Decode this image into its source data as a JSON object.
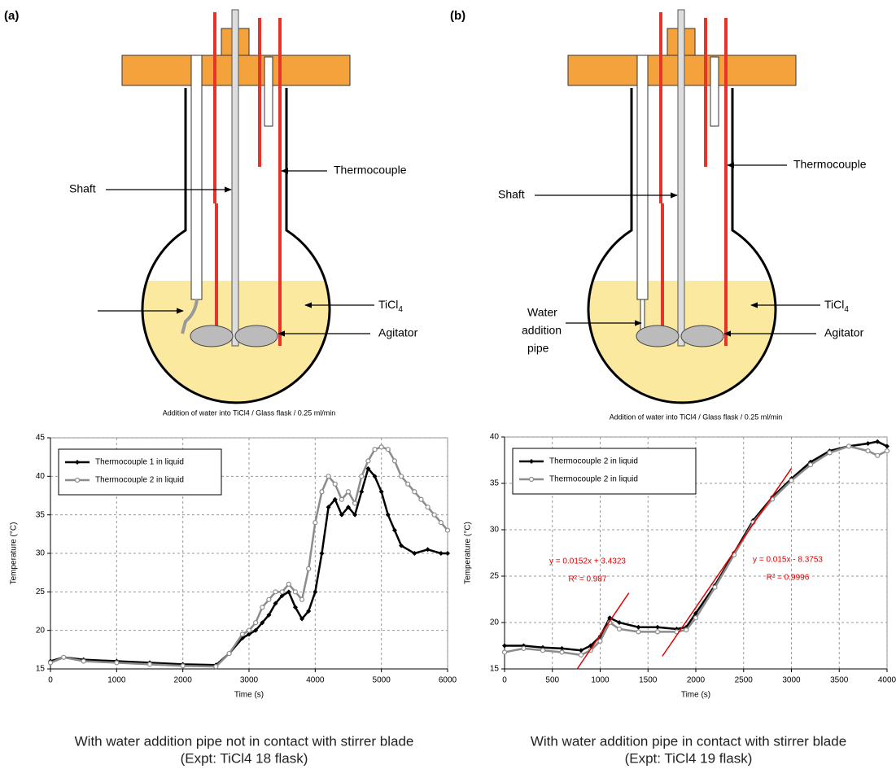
{
  "panels": [
    {
      "label": "(a)",
      "shaft": "Shaft",
      "thermocouple": "Thermocouple",
      "ticl": "TiCl",
      "ticl_sub": "4",
      "agitator": "Agitator",
      "caption": [
        "With water addition pipe not in contact with stirrer blade",
        "(Expt: TiCl4 18 flask)"
      ]
    },
    {
      "label": "(b)",
      "shaft": "Shaft",
      "thermocouple": "Thermocouple",
      "ticl": "TiCl",
      "ticl_sub": "4",
      "agitator": "Agitator",
      "water_pipe": [
        "Water",
        "addition",
        "pipe"
      ],
      "caption": [
        "With water addition pipe in contact with stirrer blade",
        "(Expt: TiCl4 19 flask)"
      ]
    }
  ],
  "chart_data": [
    {
      "type": "line",
      "title": "Addition of water into TiCl4 / Glass flask / 0.25 ml/min",
      "x_label": "Time (s)",
      "y_label": "Temperature (°C)",
      "xlim": [
        0,
        6000
      ],
      "xticks": [
        0,
        1000,
        2000,
        3000,
        4000,
        5000,
        6000
      ],
      "ylim": [
        15,
        45
      ],
      "yticks": [
        15,
        20,
        25,
        30,
        35,
        40,
        45
      ],
      "grid": true,
      "legend": "upper left",
      "series": [
        {
          "name": "Thermocouple 1 in liquid",
          "color": "#000000",
          "marker": "diamond",
          "x": [
            0,
            200,
            500,
            1000,
            1500,
            2000,
            2500,
            2700,
            2900,
            3000,
            3100,
            3200,
            3300,
            3400,
            3500,
            3600,
            3700,
            3800,
            3900,
            4000,
            4100,
            4200,
            4300,
            4400,
            4500,
            4600,
            4700,
            4800,
            4900,
            5000,
            5100,
            5200,
            5300,
            5500,
            5700,
            5900,
            6000
          ],
          "values": [
            16,
            16.5,
            16.2,
            16,
            15.8,
            15.6,
            15.5,
            17,
            19,
            19.5,
            20,
            21,
            22,
            23.5,
            24.5,
            25,
            23,
            21.5,
            22.5,
            25,
            30,
            36,
            37,
            35,
            36,
            35,
            38,
            41,
            40,
            38,
            35,
            33,
            31,
            30,
            30.5,
            30,
            30
          ]
        },
        {
          "name": "Thermocouple 2 in liquid",
          "color": "#8c8c8c",
          "marker": "circle",
          "x": [
            0,
            200,
            500,
            1000,
            1500,
            2000,
            2500,
            2700,
            2900,
            3000,
            3100,
            3200,
            3300,
            3400,
            3500,
            3600,
            3700,
            3800,
            3900,
            4000,
            4100,
            4200,
            4300,
            4400,
            4500,
            4600,
            4700,
            4800,
            4900,
            5000,
            5100,
            5200,
            5300,
            5400,
            5500,
            5600,
            5700,
            5800,
            5900,
            6000
          ],
          "values": [
            15.8,
            16.5,
            16,
            15.8,
            15.6,
            15.4,
            15.3,
            17,
            19.5,
            20,
            21,
            23,
            24,
            25,
            25,
            26,
            25,
            24,
            28,
            34,
            38,
            40,
            39,
            37,
            38,
            36.5,
            40,
            42,
            43.5,
            43.8,
            43.5,
            42,
            40,
            39,
            38,
            37,
            36,
            35,
            34,
            33
          ]
        }
      ]
    },
    {
      "type": "line",
      "title": "Addition of water into TiCl4 / Glass flask / 0.25 ml/min",
      "x_label": "Time (s)",
      "y_label": "Temperature (°C)",
      "xlim": [
        0,
        4000
      ],
      "xticks": [
        0,
        500,
        1000,
        1500,
        2000,
        2500,
        3000,
        3500,
        4000
      ],
      "ylim": [
        15,
        40
      ],
      "yticks": [
        15,
        20,
        25,
        30,
        35,
        40
      ],
      "grid": true,
      "legend": "upper left",
      "series": [
        {
          "name": "Thermocouple 2 in liquid",
          "color": "#000000",
          "marker": "diamond",
          "x": [
            0,
            200,
            400,
            600,
            800,
            900,
            1000,
            1100,
            1200,
            1400,
            1600,
            1800,
            1900,
            2000,
            2200,
            2400,
            2600,
            2800,
            3000,
            3200,
            3400,
            3600,
            3800,
            3900,
            4000
          ],
          "values": [
            17.5,
            17.5,
            17.3,
            17.2,
            17,
            17.5,
            18.5,
            20.5,
            20,
            19.5,
            19.5,
            19.3,
            19.5,
            21,
            24,
            27.5,
            31,
            33.5,
            35.5,
            37.3,
            38.5,
            39,
            39.3,
            39.5,
            39
          ]
        },
        {
          "name": "Thermocouple 2 in liquid",
          "color": "#8c8c8c",
          "marker": "circle",
          "x": [
            0,
            200,
            400,
            600,
            800,
            900,
            1000,
            1100,
            1200,
            1400,
            1600,
            1800,
            1900,
            2000,
            2200,
            2400,
            2600,
            2800,
            3000,
            3200,
            3400,
            3600,
            3800,
            3900,
            4000
          ],
          "values": [
            16.8,
            17.2,
            17,
            16.8,
            16.5,
            17,
            18,
            20,
            19.3,
            19,
            19,
            19,
            19.2,
            20.5,
            23.8,
            27.3,
            30.8,
            33.3,
            35.3,
            37,
            38.3,
            39,
            38.5,
            38,
            38.5
          ]
        }
      ],
      "trendlines": [
        {
          "color": "#e00000",
          "x": [
            760,
            1300
          ],
          "values": [
            15,
            23.19
          ]
        },
        {
          "color": "#e00000",
          "x": [
            1650,
            3000
          ],
          "values": [
            16.37,
            36.62
          ]
        }
      ],
      "annotations": [
        "y = 0.0152x + 3.4323",
        "R² = 0.987",
        "y = 0.015x - 8.3753",
        "R² = 0.9996"
      ],
      "annotation_color": "#e00000"
    }
  ]
}
